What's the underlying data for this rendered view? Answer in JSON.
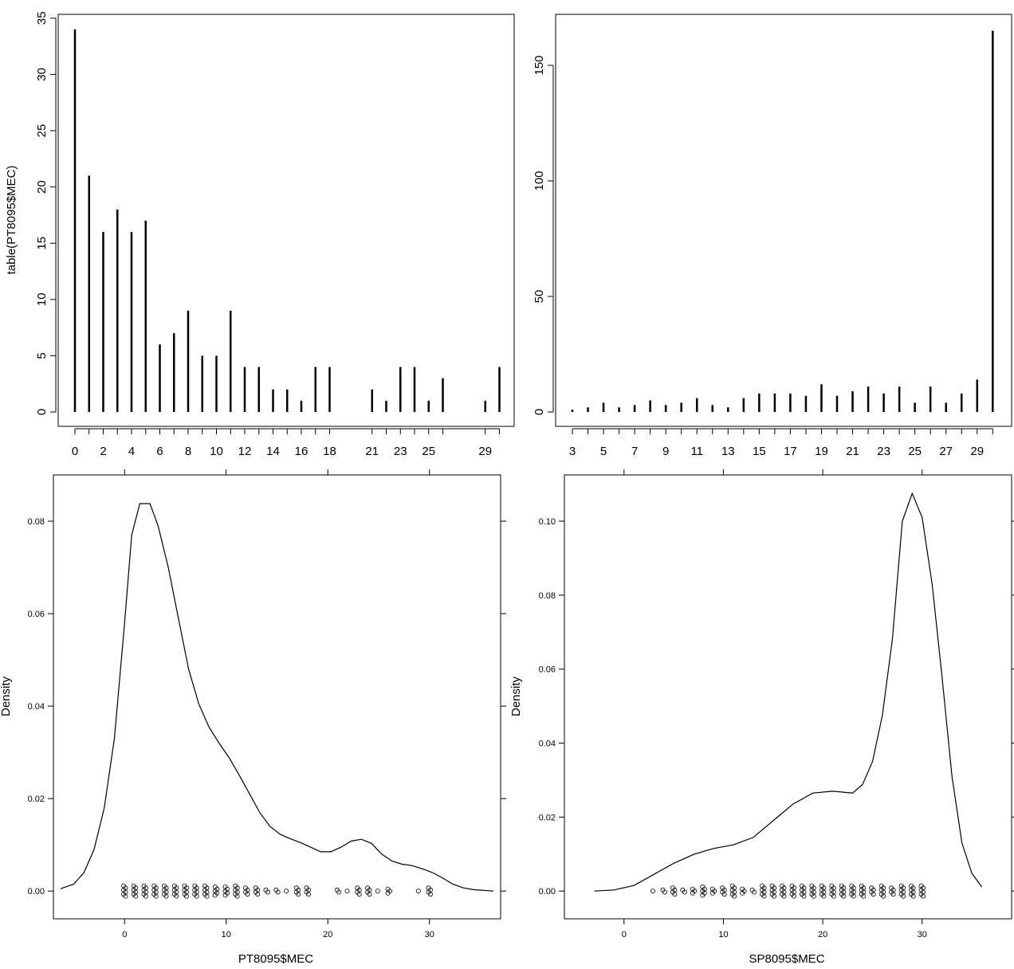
{
  "chart_data": [
    {
      "type": "bar",
      "panel": "top-left",
      "xlabel": "",
      "ylabel": "table(PT8095$MEC)",
      "ylim": [
        0,
        35
      ],
      "y_ticks": [
        "0",
        "5",
        "10",
        "15",
        "20",
        "25",
        "30",
        "35"
      ],
      "x_tick_labels": [
        "0",
        "2",
        "4",
        "6",
        "8",
        "10",
        "12",
        "14",
        "16",
        "18",
        "21",
        "23",
        "25",
        "29"
      ],
      "categories": [
        "0",
        "1",
        "2",
        "3",
        "4",
        "5",
        "6",
        "7",
        "8",
        "9",
        "10",
        "11",
        "12",
        "13",
        "14",
        "15",
        "16",
        "17",
        "18",
        "21",
        "22",
        "23",
        "24",
        "25",
        "26",
        "29",
        "30"
      ],
      "values": [
        34,
        21,
        16,
        18,
        16,
        17,
        6,
        7,
        9,
        5,
        5,
        9,
        4,
        4,
        2,
        2,
        1,
        4,
        4,
        2,
        1,
        4,
        4,
        1,
        3,
        1,
        4
      ]
    },
    {
      "type": "bar",
      "panel": "top-right",
      "xlabel": "",
      "ylabel": "",
      "ylim": [
        0,
        165
      ],
      "y_ticks": [
        "0",
        "50",
        "100",
        "150"
      ],
      "x_tick_labels": [
        "3",
        "5",
        "7",
        "9",
        "11",
        "13",
        "15",
        "17",
        "19",
        "21",
        "23",
        "25",
        "27",
        "29"
      ],
      "categories": [
        "3",
        "4",
        "5",
        "6",
        "7",
        "8",
        "9",
        "10",
        "11",
        "12",
        "13",
        "14",
        "15",
        "16",
        "17",
        "18",
        "19",
        "20",
        "21",
        "22",
        "23",
        "24",
        "25",
        "26",
        "27",
        "28",
        "29",
        "30"
      ],
      "values": [
        1,
        2,
        4,
        2,
        3,
        5,
        3,
        4,
        6,
        3,
        2,
        6,
        8,
        8,
        8,
        7,
        12,
        7,
        9,
        11,
        8,
        11,
        4,
        11,
        4,
        8,
        14,
        165
      ]
    },
    {
      "type": "line",
      "panel": "bottom-left",
      "xlabel": "PT8095$MEC",
      "ylabel": "Density",
      "xlim": [
        -7,
        37
      ],
      "ylim": [
        -0.006,
        0.09
      ],
      "x_ticks": [
        "0",
        "10",
        "20",
        "30"
      ],
      "y_ticks": [
        "0.00",
        "0.02",
        "0.04",
        "0.06",
        "0.08"
      ],
      "density_x": [
        -6.3,
        -5,
        -4,
        -3,
        -2,
        -1,
        0,
        0.7,
        1.5,
        2.5,
        3.3,
        4.3,
        5.3,
        6.3,
        7.3,
        8.3,
        9.3,
        10.3,
        11.3,
        12.3,
        13.3,
        14.3,
        15.3,
        16.3,
        17.3,
        18.3,
        19.3,
        20.3,
        21.3,
        22.3,
        23.3,
        24.3,
        25.3,
        26.3,
        27.3,
        28.3,
        29.3,
        30.3,
        31.3,
        32.3,
        33.3,
        34.3,
        36.3
      ],
      "density_y": [
        0.0005,
        0.0015,
        0.004,
        0.009,
        0.018,
        0.033,
        0.058,
        0.077,
        0.0838,
        0.0838,
        0.079,
        0.07,
        0.059,
        0.048,
        0.0405,
        0.0355,
        0.032,
        0.0288,
        0.025,
        0.021,
        0.017,
        0.014,
        0.0123,
        0.0113,
        0.0105,
        0.0095,
        0.0085,
        0.0085,
        0.0095,
        0.0108,
        0.0112,
        0.0103,
        0.008,
        0.0065,
        0.0058,
        0.0055,
        0.0048,
        0.004,
        0.0028,
        0.0015,
        0.0007,
        0.0003,
        0.0
      ],
      "rug": {
        "values": [
          0,
          1,
          2,
          3,
          4,
          5,
          6,
          7,
          8,
          9,
          10,
          11,
          12,
          13,
          14,
          15,
          16,
          17,
          18,
          21,
          22,
          23,
          24,
          25,
          26,
          29,
          30
        ],
        "counts": [
          34,
          21,
          16,
          18,
          16,
          17,
          6,
          7,
          9,
          5,
          5,
          9,
          4,
          4,
          2,
          2,
          1,
          4,
          4,
          2,
          1,
          4,
          4,
          1,
          3,
          1,
          4
        ]
      }
    },
    {
      "type": "line",
      "panel": "bottom-right",
      "xlabel": "SP8095$MEC",
      "ylabel": "Density",
      "xlim": [
        -6,
        39
      ],
      "ylim": [
        -0.0075,
        0.1125
      ],
      "x_ticks": [
        "0",
        "10",
        "20",
        "30"
      ],
      "y_ticks": [
        "0.00",
        "0.02",
        "0.04",
        "0.06",
        "0.08",
        "0.10"
      ],
      "density_x": [
        -3,
        -1,
        1,
        3,
        5,
        7,
        9,
        11,
        13,
        15,
        17,
        19,
        21,
        23,
        24,
        25,
        26,
        27,
        28,
        29,
        30,
        31,
        32,
        33,
        34,
        35,
        36
      ],
      "density_y": [
        0.0,
        0.0003,
        0.0015,
        0.0045,
        0.0075,
        0.0099,
        0.0115,
        0.0125,
        0.0145,
        0.019,
        0.0235,
        0.0265,
        0.027,
        0.0265,
        0.0288,
        0.035,
        0.0475,
        0.068,
        0.1,
        0.1075,
        0.101,
        0.083,
        0.058,
        0.031,
        0.013,
        0.0048,
        0.0011
      ],
      "rug": {
        "values": [
          3,
          4,
          5,
          6,
          7,
          8,
          9,
          10,
          11,
          12,
          13,
          14,
          15,
          16,
          17,
          18,
          19,
          20,
          21,
          22,
          23,
          24,
          25,
          26,
          27,
          28,
          29,
          30
        ],
        "counts": [
          1,
          2,
          4,
          2,
          3,
          5,
          3,
          4,
          6,
          3,
          2,
          6,
          8,
          8,
          8,
          7,
          12,
          7,
          9,
          11,
          8,
          11,
          4,
          11,
          4,
          8,
          14,
          165
        ]
      }
    }
  ]
}
